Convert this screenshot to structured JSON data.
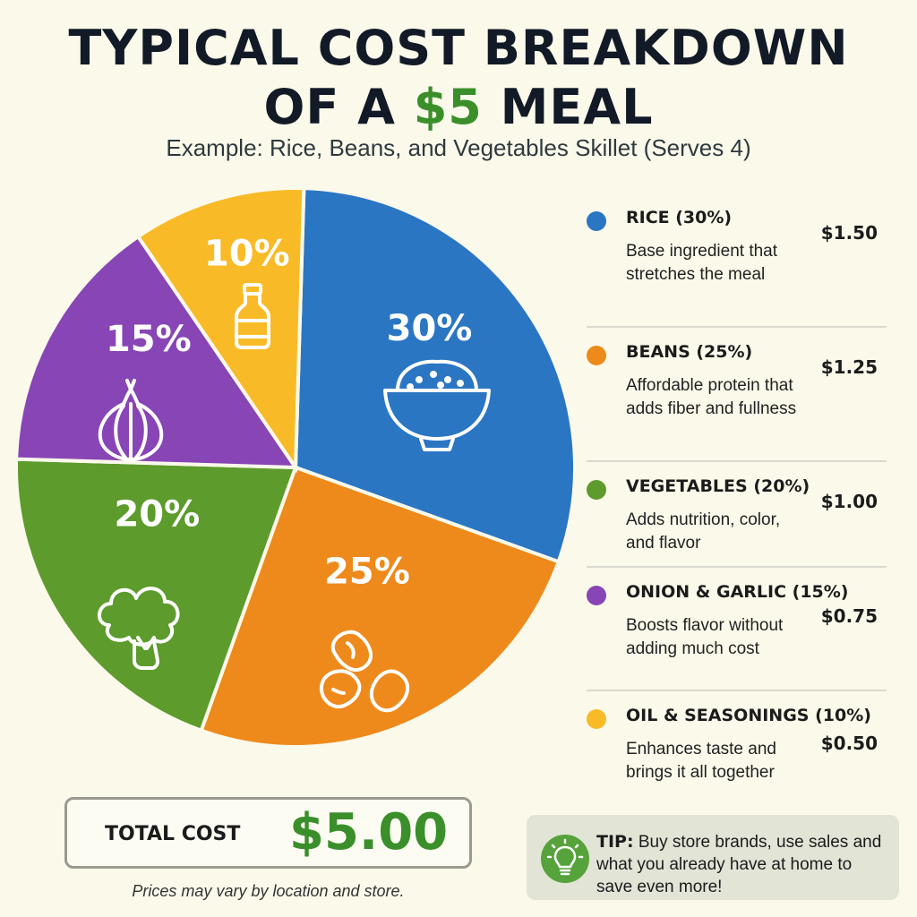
{
  "title": {
    "line1": "TYPICAL COST BREAKDOWN",
    "line2_pre": "OF A ",
    "line2_accent": "$5",
    "line2_post": " MEAL"
  },
  "subtitle": "Example: Rice, Beans, and Vegetables Skillet (Serves 4)",
  "colors": {
    "rice": "#2a76c3",
    "beans": "#ee8a1c",
    "vegetables": "#5c9b2c",
    "onion_garlic": "#8845b5",
    "oil_seasonings": "#f8bb27",
    "accent": "#3b8f2a"
  },
  "chart_data": {
    "type": "pie",
    "title": "TYPICAL COST BREAKDOWN OF A $5 MEAL",
    "categories": [
      "RICE",
      "BEANS",
      "VEGETABLES",
      "ONION & GARLIC",
      "OIL & SEASONINGS"
    ],
    "values": [
      30,
      25,
      20,
      15,
      10
    ],
    "labels": [
      "30%",
      "25%",
      "20%",
      "15%",
      "10%"
    ],
    "icons": [
      "rice-bowl-icon",
      "beans-icon",
      "broccoli-icon",
      "onion-icon",
      "oil-bottle-icon"
    ],
    "colors": [
      "#2a76c3",
      "#ee8a1c",
      "#5c9b2c",
      "#8845b5",
      "#f8bb27"
    ]
  },
  "legend": [
    {
      "name": "RICE (30%)",
      "desc": "Base ingredient that stretches the meal",
      "cost": "$1.50"
    },
    {
      "name": "BEANS (25%)",
      "desc": "Affordable protein that adds fiber and fullness",
      "cost": "$1.25"
    },
    {
      "name": "VEGETABLES (20%)",
      "desc": "Adds nutrition, color, and flavor",
      "cost": "$1.00"
    },
    {
      "name": "ONION & GARLIC (15%)",
      "desc": "Boosts flavor without adding much cost",
      "cost": "$0.75"
    },
    {
      "name": "OIL & SEASONINGS (10%)",
      "desc": "Enhances taste and brings it all together",
      "cost": "$0.50"
    }
  ],
  "total": {
    "label": "TOTAL COST",
    "value": "$5.00"
  },
  "note": "Prices may vary by location and store.",
  "tip": {
    "label": "TIP:",
    "text": " Buy store brands, use sales and what you already have at home to save even more!",
    "icon": "lightbulb-icon"
  }
}
